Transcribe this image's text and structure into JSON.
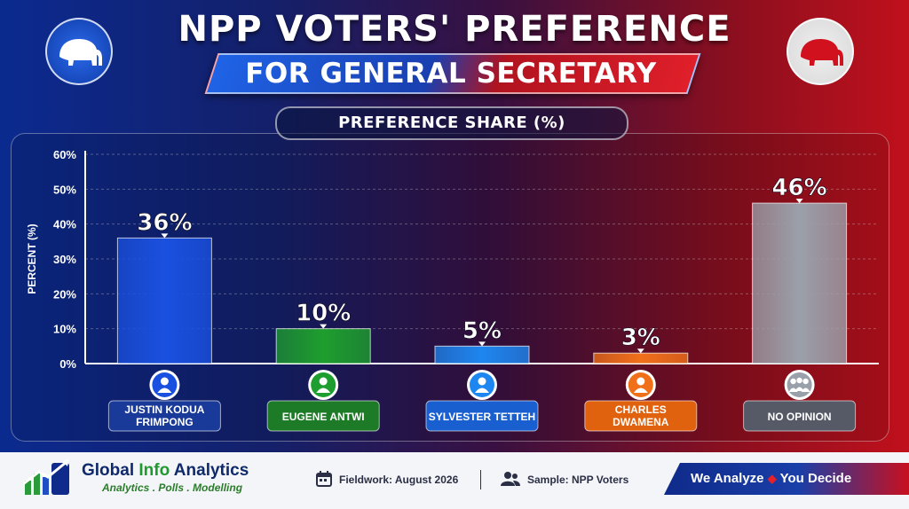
{
  "header": {
    "title": "NPP VOTERS' PREFERENCE",
    "subtitle": "FOR GENERAL SECRETARY",
    "chart_label": "PREFERENCE SHARE (%)"
  },
  "colors": {
    "blue": "#1a50e0",
    "green": "#1e9e2e",
    "lightblue": "#1e86f0",
    "orange": "#f0701a",
    "gray": "#9aa0aa"
  },
  "chart_data": {
    "type": "bar",
    "ylabel": "PERCENT (%)",
    "ylim": [
      0,
      60
    ],
    "yticks": [
      "0%",
      "10%",
      "20%",
      "30%",
      "40%",
      "50%",
      "60%"
    ],
    "grid": true,
    "categories": [
      "JUSTIN KODUA FRIMPONG",
      "EUGENE ANTWI",
      "SYLVESTER TETTEH",
      "CHARLES DWAMENA",
      "NO OPINION"
    ],
    "category_lines": [
      [
        "JUSTIN KODUA",
        "FRIMPONG"
      ],
      [
        "EUGENE ANTWI"
      ],
      [
        "SYLVESTER TETTEH"
      ],
      [
        "CHARLES",
        "DWAMENA"
      ],
      [
        "NO OPINION"
      ]
    ],
    "values": [
      36,
      10,
      5,
      3,
      46
    ],
    "labels": [
      "36%",
      "10%",
      "5%",
      "3%",
      "46%"
    ],
    "bar_colors": [
      "blue",
      "green",
      "lightblue",
      "orange",
      "gray"
    ],
    "icons": [
      "person-icon",
      "person-icon",
      "person-icon",
      "person-icon",
      "group-icon"
    ]
  },
  "footer": {
    "brand_name_1": "Global ",
    "brand_name_2": "Info",
    "brand_name_3": " Analytics",
    "brand_sub": "Analytics . Polls . Modelling",
    "fieldwork": "Fieldwork: August 2026",
    "sample": "Sample: NPP Voters",
    "slogan_1": "We Analyze",
    "slogan_2": "You Decide"
  }
}
